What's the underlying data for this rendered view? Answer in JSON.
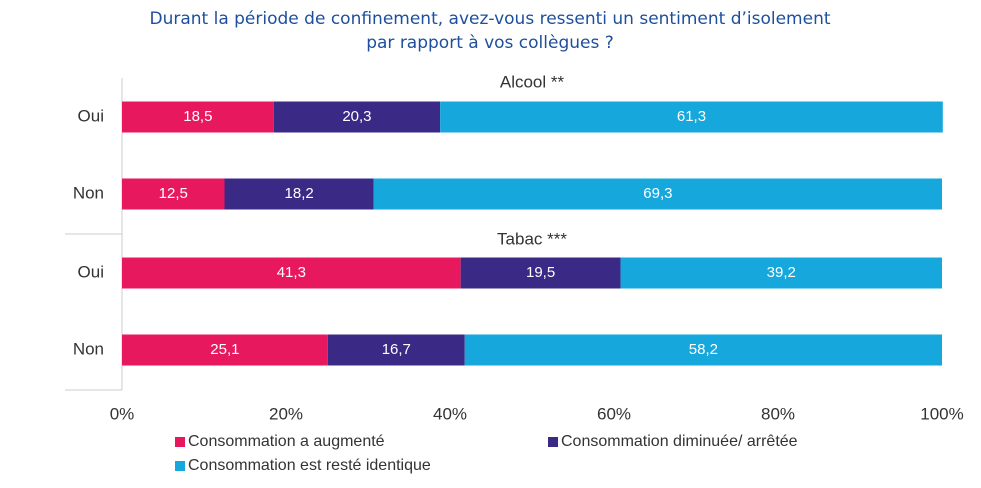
{
  "chart_data": {
    "type": "stacked_barh",
    "title": "Durant la période de confinement, avez-vous ressenti un sentiment d’isolement",
    "title_line2": "par rapport à vos collègues ?",
    "groups": [
      {
        "name": "Alcool **",
        "categories": [
          "Oui",
          "Non"
        ]
      },
      {
        "name": "Tabac ***",
        "categories": [
          "Oui",
          "Non"
        ]
      }
    ],
    "series": [
      {
        "name": "Consommation a augmenté",
        "color": "#e8185e",
        "values": [
          18.5,
          12.5,
          41.3,
          25.1
        ],
        "value_labels": [
          "18,5",
          "12,5",
          "41,3",
          "25,1"
        ]
      },
      {
        "name": "Consommation diminuée/ arrêtée",
        "color": "#3a2a86",
        "values": [
          20.3,
          18.2,
          19.5,
          16.7
        ],
        "value_labels": [
          "20,3",
          "18,2",
          "19,5",
          "16,7"
        ]
      },
      {
        "name": "Consommation est resté identique",
        "color": "#16a8dc",
        "values": [
          61.3,
          69.3,
          39.2,
          58.2
        ],
        "value_labels": [
          "61,3",
          "69,3",
          "39,2",
          "58,2"
        ]
      }
    ],
    "xlim": [
      0,
      100
    ],
    "xticks": [
      {
        "value": 0,
        "label": "0%"
      },
      {
        "value": 20,
        "label": "20%"
      },
      {
        "value": 40,
        "label": "40%"
      },
      {
        "value": 60,
        "label": "60%"
      },
      {
        "value": 80,
        "label": "80%"
      },
      {
        "value": 100,
        "label": "100%"
      }
    ]
  }
}
